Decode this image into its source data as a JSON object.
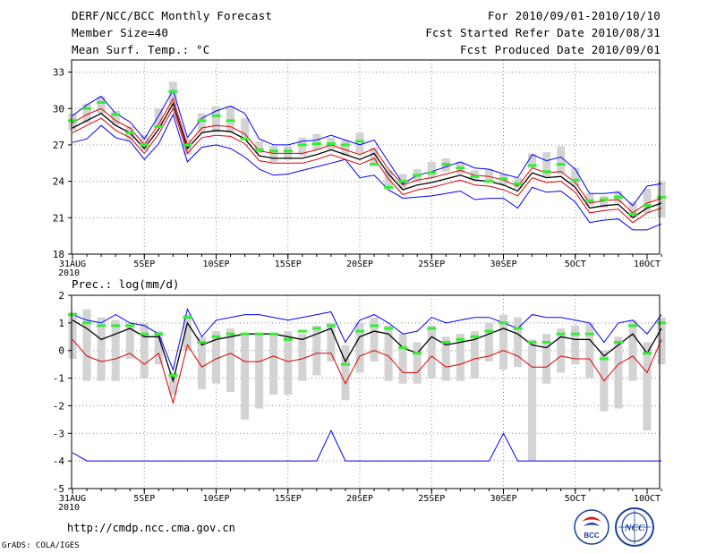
{
  "header": {
    "title": "DERF/NCC/BCC Monthly Forecast",
    "member_size": "Member Size=40",
    "variable": "Mean Surf. Temp.: °C",
    "period": "For 2010/09/01-2010/10/10",
    "started": "Fcst Started Refer Date 2010/08/31",
    "produced": "Fcst Produced Date 2010/09/01"
  },
  "footer": {
    "url": "http://cmdp.ncc.cma.gov.cn",
    "credit": "GrADS: COLA/IGES",
    "logo_bcc": "BCC",
    "logo_ncc": "NCC"
  },
  "colors": {
    "envelope": "#0000ff",
    "spread": "#dd0000",
    "mean": "#000000",
    "median": "#33ee33",
    "range": "#d3d3d3",
    "grid": "#888888"
  },
  "chart_data": [
    {
      "type": "line",
      "title": "Mean Surf. Temp.: °C",
      "x_tick_labels": [
        "31AUG",
        "5SEP",
        "10SEP",
        "15SEP",
        "20SEP",
        "25SEP",
        "30SEP",
        "5OCT",
        "10OCT"
      ],
      "x_tick_day_index": [
        0,
        5,
        10,
        15,
        20,
        25,
        30,
        35,
        40
      ],
      "x_year_label": "2010",
      "ylim": [
        18,
        34
      ],
      "y_ticks": [
        18,
        21,
        24,
        27,
        30,
        33
      ],
      "series": [
        {
          "name": "max",
          "values": [
            27.2,
            27.5,
            28.6,
            27.6,
            27.3,
            25.8,
            27.1,
            29.5,
            25.6,
            26.8,
            27.0,
            26.7,
            26.0,
            25.0,
            24.5,
            24.6,
            24.9,
            25.2,
            25.5,
            25.8,
            24.3,
            24.5,
            23.3,
            22.6,
            22.7,
            22.8,
            23.0,
            23.2,
            22.5,
            22.6,
            22.6,
            21.8,
            23.5,
            23.1,
            23.2,
            22.3,
            20.6,
            20.8,
            20.9,
            20.0,
            20.0,
            20.5
          ]
        },
        {
          "name": "spread-high",
          "values": [
            28.8,
            29.5,
            30.0,
            29.0,
            28.4,
            27.0,
            28.7,
            30.8,
            27.0,
            28.4,
            28.6,
            28.5,
            27.9,
            26.5,
            26.3,
            26.3,
            26.3,
            26.6,
            27.0,
            26.6,
            26.2,
            26.7,
            25.0,
            23.7,
            24.1,
            24.3,
            24.6,
            24.9,
            24.5,
            24.4,
            24.1,
            23.6,
            25.1,
            24.7,
            24.8,
            23.9,
            22.2,
            22.4,
            22.5,
            21.4,
            22.2,
            22.6
          ]
        },
        {
          "name": "mean",
          "values": [
            28.4,
            29.0,
            29.6,
            28.6,
            28.0,
            26.7,
            28.3,
            30.4,
            26.7,
            28.0,
            28.2,
            28.1,
            27.5,
            26.1,
            25.9,
            25.9,
            25.9,
            26.2,
            26.6,
            26.2,
            25.8,
            26.3,
            24.6,
            23.3,
            23.7,
            23.9,
            24.2,
            24.5,
            24.1,
            24.0,
            23.7,
            23.2,
            24.7,
            24.3,
            24.4,
            23.5,
            21.8,
            22.0,
            22.1,
            21.0,
            21.8,
            22.2
          ]
        },
        {
          "name": "spread-low",
          "values": [
            28.0,
            28.6,
            29.2,
            28.2,
            27.6,
            26.3,
            27.9,
            30.0,
            26.3,
            27.6,
            27.8,
            27.7,
            27.1,
            25.7,
            25.5,
            25.5,
            25.5,
            25.8,
            26.2,
            25.8,
            25.4,
            25.9,
            24.2,
            22.9,
            23.3,
            23.5,
            23.8,
            24.1,
            23.7,
            23.6,
            23.3,
            22.8,
            24.3,
            23.9,
            24.0,
            23.1,
            21.4,
            21.6,
            21.7,
            20.6,
            21.4,
            21.8
          ]
        },
        {
          "name": "min",
          "values": [
            29.4,
            30.3,
            31.0,
            29.6,
            28.9,
            27.5,
            29.4,
            31.5,
            27.6,
            29.2,
            29.8,
            30.2,
            29.6,
            27.5,
            27.0,
            27.0,
            27.3,
            27.4,
            27.8,
            27.4,
            27.0,
            27.4,
            25.6,
            23.8,
            24.5,
            24.8,
            25.2,
            25.6,
            25.1,
            25.0,
            24.6,
            24.3,
            26.2,
            25.7,
            26.0,
            25.0,
            23.0,
            23.0,
            23.1,
            22.0,
            23.6,
            23.8
          ]
        }
      ],
      "box_ranges": [
        [
          28.2,
          29.6
        ],
        [
          28.8,
          30.4
        ],
        [
          29.6,
          31.0
        ],
        [
          28.6,
          29.8
        ],
        [
          27.4,
          28.5
        ],
        [
          26.5,
          27.8
        ],
        [
          28.5,
          30.0
        ],
        [
          30.2,
          32.2
        ],
        [
          26.2,
          27.5
        ],
        [
          28.0,
          29.6
        ],
        [
          28.0,
          30.2
        ],
        [
          28.0,
          30.2
        ],
        [
          27.6,
          29.2
        ],
        [
          26.3,
          27.3
        ],
        [
          25.6,
          26.9
        ],
        [
          25.8,
          26.9
        ],
        [
          26.1,
          27.6
        ],
        [
          26.6,
          27.9
        ],
        [
          26.6,
          27.6
        ],
        [
          26.1,
          27.4
        ],
        [
          26.3,
          28.0
        ],
        [
          25.4,
          26.8
        ],
        [
          23.4,
          24.9
        ],
        [
          23.4,
          24.6
        ],
        [
          23.9,
          25.0
        ],
        [
          24.3,
          25.6
        ],
        [
          24.8,
          25.9
        ],
        [
          24.6,
          25.6
        ],
        [
          24.1,
          24.9
        ],
        [
          24.0,
          25.0
        ],
        [
          23.7,
          24.6
        ],
        [
          23.4,
          24.3
        ],
        [
          25.1,
          26.3
        ],
        [
          24.3,
          26.4
        ],
        [
          24.6,
          26.9
        ],
        [
          23.6,
          25.1
        ],
        [
          22.0,
          23.0
        ],
        [
          21.8,
          22.8
        ],
        [
          22.2,
          23.2
        ],
        [
          21.0,
          22.3
        ],
        [
          21.4,
          23.4
        ],
        [
          21.0,
          24.0
        ]
      ],
      "median": [
        29.0,
        30.0,
        30.5,
        29.5,
        28.0,
        27.0,
        28.5,
        31.4,
        27.0,
        29.0,
        29.4,
        29.0,
        27.5,
        26.6,
        26.5,
        26.5,
        27.0,
        27.1,
        27.1,
        27.0,
        27.3,
        25.4,
        23.5,
        24.0,
        24.5,
        24.7,
        25.4,
        25.1,
        24.4,
        24.0,
        24.2,
        23.8,
        25.3,
        24.8,
        25.4,
        24.1,
        22.4,
        22.5,
        22.7,
        21.3,
        22.0,
        22.7
      ]
    },
    {
      "type": "line",
      "title": "Prec.: log(mm/d)",
      "x_tick_labels": [
        "31AUG",
        "5SEP",
        "10SEP",
        "15SEP",
        "20SEP",
        "25SEP",
        "30SEP",
        "5OCT",
        "10OCT"
      ],
      "x_tick_day_index": [
        0,
        5,
        10,
        15,
        20,
        25,
        30,
        35,
        40
      ],
      "x_year_label": "2010",
      "ylim": [
        -5,
        2
      ],
      "y_ticks": [
        -5,
        -4,
        -3,
        -2,
        -1,
        0,
        1,
        2
      ],
      "series": [
        {
          "name": "max",
          "values": [
            1.3,
            1.1,
            1.0,
            1.3,
            1.0,
            0.9,
            0.6,
            -0.7,
            1.5,
            0.5,
            1.1,
            1.2,
            1.3,
            1.3,
            1.2,
            1.1,
            1.2,
            1.3,
            1.4,
            0.3,
            1.1,
            1.3,
            1.0,
            0.6,
            0.7,
            1.2,
            1.0,
            1.1,
            1.2,
            1.2,
            1.0,
            0.8,
            1.3,
            1.2,
            1.2,
            1.1,
            1.0,
            0.3,
            1.0,
            1.1,
            0.6,
            1.3
          ]
        },
        {
          "name": "mean",
          "values": [
            1.1,
            0.8,
            0.4,
            0.6,
            0.8,
            0.5,
            0.5,
            -1.1,
            1.0,
            0.2,
            0.4,
            0.5,
            0.6,
            0.6,
            0.6,
            0.5,
            0.4,
            0.6,
            0.8,
            -0.4,
            0.5,
            0.7,
            0.6,
            0.1,
            -0.1,
            0.5,
            0.2,
            0.3,
            0.4,
            0.6,
            0.8,
            0.6,
            0.2,
            0.1,
            0.5,
            0.4,
            0.4,
            -0.2,
            0.2,
            0.6,
            -0.1,
            0.8
          ]
        },
        {
          "name": "min",
          "values": [
            0.4,
            -0.2,
            -0.4,
            -0.3,
            -0.1,
            -0.5,
            -0.1,
            -1.9,
            0.2,
            -0.6,
            -0.3,
            -0.1,
            -0.4,
            -0.4,
            -0.2,
            -0.4,
            -0.3,
            -0.1,
            -0.1,
            -1.2,
            -0.2,
            0.0,
            -0.2,
            -0.8,
            -0.8,
            -0.2,
            -0.6,
            -0.5,
            -0.3,
            -0.2,
            0.0,
            -0.2,
            -0.6,
            -0.6,
            -0.2,
            -0.3,
            -0.3,
            -1.1,
            -0.5,
            -0.2,
            -0.8,
            0.4
          ]
        },
        {
          "name": "lowest-member",
          "values": [
            -3.7,
            -4.0,
            -4.0,
            -4.0,
            -4.0,
            -4.0,
            -4.0,
            -4.0,
            -4.0,
            -4.0,
            -4.0,
            -4.0,
            -4.0,
            -4.0,
            -4.0,
            -4.0,
            -4.0,
            -4.0,
            -2.9,
            -4.0,
            -4.0,
            -4.0,
            -4.0,
            -4.0,
            -4.0,
            -4.0,
            -4.0,
            -4.0,
            -4.0,
            -4.0,
            -3.0,
            -4.0,
            -4.0,
            -4.0,
            -4.0,
            -4.0,
            -4.0,
            -4.0,
            -4.0,
            -4.0,
            -4.0,
            -4.0
          ]
        }
      ],
      "box_ranges": [
        [
          -0.3,
          1.4
        ],
        [
          -1.1,
          1.5
        ],
        [
          -1.1,
          1.2
        ],
        [
          -1.1,
          1.1
        ],
        [
          -0.3,
          1.0
        ],
        [
          -1.0,
          1.0
        ],
        [
          -0.5,
          0.7
        ],
        [
          -1.6,
          -0.8
        ],
        [
          0.0,
          1.3
        ],
        [
          -1.4,
          0.5
        ],
        [
          -1.2,
          0.7
        ],
        [
          -1.5,
          0.8
        ],
        [
          -2.5,
          0.6
        ],
        [
          -2.1,
          0.6
        ],
        [
          -1.6,
          0.6
        ],
        [
          -1.6,
          0.7
        ],
        [
          -1.1,
          0.6
        ],
        [
          -0.9,
          0.9
        ],
        [
          -0.4,
          1.0
        ],
        [
          -1.8,
          0.2
        ],
        [
          -0.8,
          1.0
        ],
        [
          -0.4,
          1.2
        ],
        [
          -1.1,
          0.9
        ],
        [
          -1.2,
          0.6
        ],
        [
          -1.2,
          0.3
        ],
        [
          -1.0,
          0.9
        ],
        [
          -1.1,
          0.5
        ],
        [
          -1.1,
          0.6
        ],
        [
          -1.0,
          0.7
        ],
        [
          -0.4,
          1.0
        ],
        [
          -0.7,
          1.3
        ],
        [
          -0.6,
          1.2
        ],
        [
          -4.0,
          0.4
        ],
        [
          -1.2,
          0.6
        ],
        [
          -0.8,
          0.8
        ],
        [
          -0.5,
          0.9
        ],
        [
          -1.0,
          1.0
        ],
        [
          -2.2,
          0.0
        ],
        [
          -2.1,
          0.5
        ],
        [
          -1.1,
          1.1
        ],
        [
          -2.9,
          0.3
        ],
        [
          -0.5,
          1.2
        ]
      ],
      "median": [
        1.3,
        1.0,
        0.9,
        0.9,
        0.9,
        0.6,
        0.6,
        -0.9,
        1.2,
        0.3,
        0.5,
        0.6,
        0.6,
        0.6,
        0.6,
        0.4,
        0.7,
        0.8,
        0.9,
        -0.5,
        0.7,
        0.9,
        0.8,
        0.1,
        -0.1,
        0.8,
        0.3,
        0.4,
        0.5,
        0.7,
        1.0,
        0.8,
        0.3,
        0.3,
        0.6,
        0.6,
        0.6,
        -0.3,
        0.3,
        0.9,
        -0.1,
        1.0
      ]
    }
  ]
}
